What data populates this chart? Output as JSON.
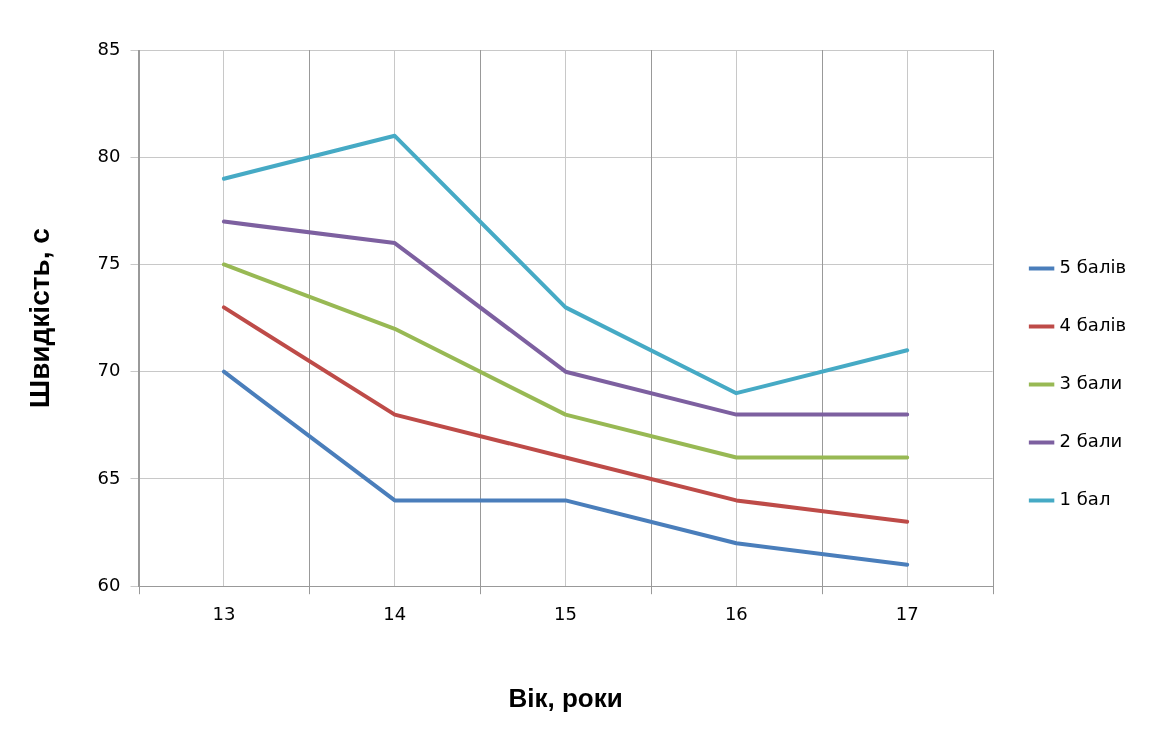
{
  "chart_data": {
    "type": "line",
    "xlabel": "Вік, роки",
    "ylabel": "Швидкість, с",
    "categories": [
      "13",
      "14",
      "15",
      "16",
      "17"
    ],
    "series": [
      {
        "name": "5 балів",
        "color": "#4a7ebb",
        "values": [
          70,
          64,
          64,
          62,
          61
        ]
      },
      {
        "name": "4 балів",
        "color": "#be4b48",
        "values": [
          73,
          68,
          66,
          64,
          63
        ]
      },
      {
        "name": "3 бали",
        "color": "#98b954",
        "values": [
          75,
          72,
          68,
          66,
          66
        ]
      },
      {
        "name": "2 бали",
        "color": "#7d60a0",
        "values": [
          77,
          76,
          70,
          68,
          68
        ]
      },
      {
        "name": "1 бал",
        "color": "#46aac5",
        "values": [
          79,
          81,
          73,
          69,
          71
        ]
      }
    ],
    "ylim": [
      60,
      85
    ],
    "yticks": [
      60,
      65,
      70,
      75,
      80,
      85
    ],
    "grid": true,
    "legend": "right",
    "marker": "none",
    "line_style": "solid"
  }
}
